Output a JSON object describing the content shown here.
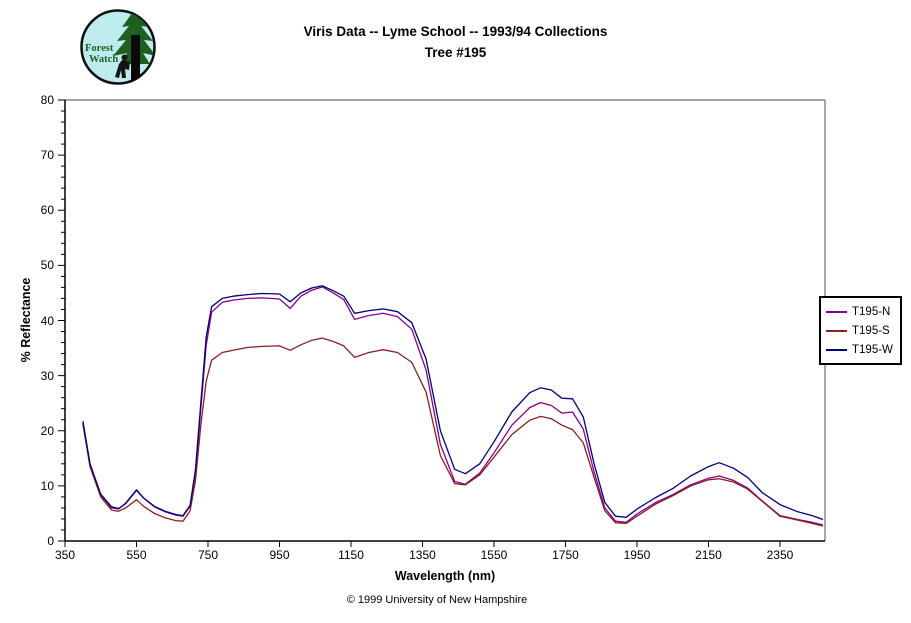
{
  "logo": {
    "words": [
      "Forest",
      "Watch"
    ]
  },
  "footer": {
    "copyright": "© 1999 University of New Hampshire"
  },
  "colors": {
    "background": "#FFFFFF",
    "plot_border_gray": "#878787",
    "axis_black": "#000000",
    "logo_background": "#BDEBEE",
    "logo_green": "#1F5F1F"
  },
  "chart_data": {
    "type": "line",
    "title": "Viris Data -- Lyme School -- 1993/94 Collections",
    "subtitle": "Tree #195",
    "xlabel": "Wavelength (nm)",
    "ylabel": "% Reflectance",
    "x_range": [
      350,
      2476
    ],
    "y_range": [
      0,
      80
    ],
    "x_ticks": [
      350,
      550,
      750,
      950,
      1150,
      1350,
      1550,
      1750,
      1950,
      2150,
      2350
    ],
    "y_ticks": [
      0,
      10,
      20,
      30,
      40,
      50,
      60,
      70,
      80
    ],
    "y_minor_step": 2,
    "grid": false,
    "legend_position": "right",
    "x": [
      400,
      420,
      450,
      480,
      500,
      520,
      550,
      570,
      600,
      630,
      660,
      680,
      700,
      715,
      730,
      745,
      760,
      790,
      820,
      860,
      900,
      950,
      980,
      1010,
      1040,
      1070,
      1100,
      1130,
      1160,
      1200,
      1240,
      1280,
      1320,
      1360,
      1400,
      1440,
      1470,
      1510,
      1550,
      1600,
      1650,
      1680,
      1710,
      1740,
      1770,
      1800,
      1830,
      1860,
      1890,
      1920,
      1950,
      2000,
      2050,
      2100,
      2150,
      2180,
      2220,
      2260,
      2300,
      2350,
      2400,
      2440,
      2470
    ],
    "series": [
      {
        "name": "T195-N",
        "color": "#8A008A",
        "values": [
          21.8,
          14,
          8.3,
          6.0,
          5.8,
          6.9,
          9.3,
          7.8,
          6.2,
          5.3,
          4.7,
          4.5,
          6.3,
          12.5,
          24,
          35.5,
          41.5,
          43.3,
          43.7,
          44.0,
          44.1,
          43.9,
          42.2,
          44.4,
          45.5,
          46.1,
          45.0,
          43.8,
          40.2,
          40.9,
          41.3,
          40.7,
          38.4,
          31,
          17.5,
          10.8,
          10.3,
          12.3,
          16,
          21,
          24.2,
          25.1,
          24.6,
          23.2,
          23.4,
          20.3,
          12.5,
          6,
          3.6,
          3.4,
          4.9,
          6.9,
          8.4,
          10.2,
          11.4,
          11.8,
          11.0,
          9.6,
          7.3,
          4.6,
          3.9,
          3.4,
          2.9
        ]
      },
      {
        "name": "T195-S",
        "color": "#8B2020",
        "values": [
          21.2,
          13.5,
          8.0,
          5.6,
          5.4,
          6.0,
          7.5,
          6.3,
          5.0,
          4.2,
          3.7,
          3.6,
          5.5,
          11,
          21,
          29,
          32.8,
          34.2,
          34.6,
          35.1,
          35.3,
          35.4,
          34.6,
          35.6,
          36.4,
          36.8,
          36.2,
          35.4,
          33.3,
          34.2,
          34.7,
          34.2,
          32.4,
          27,
          15.5,
          10.4,
          10.2,
          12.0,
          15.2,
          19.3,
          21.9,
          22.6,
          22.2,
          21.0,
          20.2,
          17.8,
          11.5,
          5.5,
          3.3,
          3.2,
          4.5,
          6.6,
          8.2,
          10.0,
          11.1,
          11.3,
          10.7,
          9.4,
          7.2,
          4.5,
          3.8,
          3.2,
          2.7
        ]
      },
      {
        "name": "T195-W",
        "color": "#000080",
        "values": [
          21.5,
          14,
          8.5,
          6.2,
          5.9,
          6.8,
          9.2,
          7.8,
          6.3,
          5.4,
          4.8,
          4.6,
          6.5,
          13,
          25,
          37,
          42.5,
          44.0,
          44.4,
          44.7,
          44.9,
          44.8,
          43.4,
          45.0,
          45.9,
          46.3,
          45.4,
          44.4,
          41.3,
          41.8,
          42.1,
          41.6,
          39.6,
          33,
          20,
          13.0,
          12.2,
          14,
          18,
          23.4,
          26.9,
          27.8,
          27.4,
          25.9,
          25.8,
          22.5,
          14,
          7,
          4.5,
          4.3,
          5.8,
          7.8,
          9.5,
          11.8,
          13.5,
          14.2,
          13.2,
          11.5,
          8.8,
          6.6,
          5.3,
          4.6,
          3.9
        ]
      }
    ]
  }
}
